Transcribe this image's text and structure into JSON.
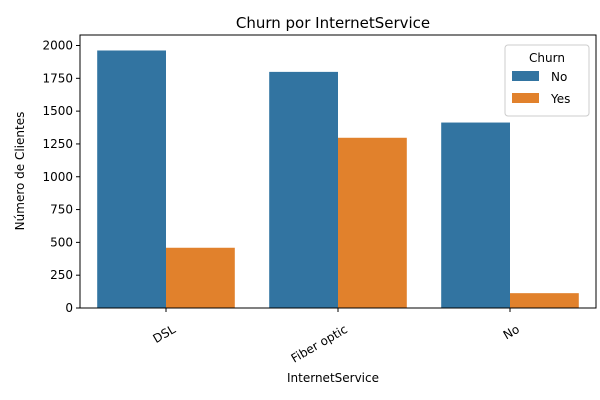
{
  "chart_data": {
    "type": "bar",
    "title": "Churn por InternetService",
    "xlabel": "InternetService",
    "ylabel": "Número de Clientes",
    "categories": [
      "DSL",
      "Fiber optic",
      "No"
    ],
    "series": [
      {
        "name": "No",
        "values": [
          1962,
          1799,
          1413
        ],
        "color": "#3274a1"
      },
      {
        "name": "Yes",
        "values": [
          459,
          1297,
          113
        ],
        "color": "#e1812c"
      }
    ],
    "ylim": [
      0,
      2080
    ],
    "yticks": [
      0,
      250,
      500,
      750,
      1000,
      1250,
      1500,
      1750,
      2000
    ],
    "ytick_labels": [
      "0",
      "250",
      "500",
      "750",
      "1000",
      "1250",
      "1500",
      "1750",
      "2000"
    ],
    "legend": {
      "title": "Churn",
      "placement": "top-right"
    },
    "grid": false
  }
}
